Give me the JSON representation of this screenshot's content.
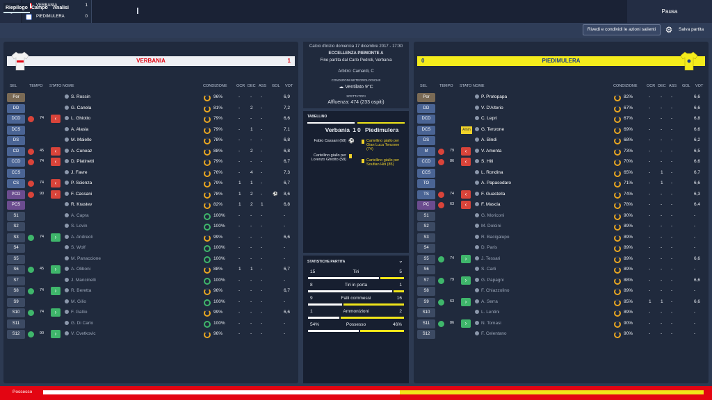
{
  "topbar": {
    "home_team": "VERBANIA",
    "home_score": "1",
    "away_team": "PIEDIMULERA",
    "away_score": "0",
    "pause_label": "Pausa"
  },
  "tabs": [
    "Riepilogo",
    "Campo",
    "Analisi"
  ],
  "toolbar": {
    "share_label": "Rivedi e condividi le azioni salienti",
    "save_label": "Salva partita"
  },
  "home": {
    "name": "VERBANIA",
    "score": "1",
    "headers": [
      "SEL",
      "TEMPO",
      "STATO",
      "NOME",
      "CONDIZIONE",
      "OCR",
      "DEC",
      "ASS",
      "GOL",
      "VOT"
    ],
    "players": [
      {
        "pos": "Por",
        "time": "",
        "status": "",
        "name": "S. Rossin",
        "cond": "96%",
        "ocr": "-",
        "dec": "-",
        "ass": "-",
        "gol": "",
        "vot": "6,9"
      },
      {
        "pos": "DD",
        "time": "",
        "status": "",
        "name": "G. Canela",
        "cond": "81%",
        "ocr": "-",
        "dec": "2",
        "ass": "-",
        "gol": "",
        "vot": "7,2"
      },
      {
        "pos": "DCD",
        "time": "74",
        "status": "out",
        "name": "L. Ghiotto",
        "cond": "79%",
        "ocr": "-",
        "dec": "-",
        "ass": "-",
        "gol": "",
        "vot": "6,6"
      },
      {
        "pos": "DCS",
        "time": "",
        "status": "",
        "name": "A. Alasia",
        "cond": "79%",
        "ocr": "-",
        "dec": "1",
        "ass": "-",
        "gol": "",
        "vot": "7,1"
      },
      {
        "pos": "DS",
        "time": "",
        "status": "",
        "name": "M. Maiello",
        "cond": "78%",
        "ocr": "-",
        "dec": "-",
        "ass": "-",
        "gol": "",
        "vot": "6,8"
      },
      {
        "pos": "CD",
        "time": "45",
        "status": "out",
        "name": "A. Cuneaz",
        "cond": "88%",
        "ocr": "-",
        "dec": "2",
        "ass": "-",
        "gol": "",
        "vot": "6,8"
      },
      {
        "pos": "CCD",
        "time": "74",
        "status": "out",
        "name": "D. Platinetti",
        "cond": "79%",
        "ocr": "-",
        "dec": "-",
        "ass": "-",
        "gol": "",
        "vot": "6,7"
      },
      {
        "pos": "CCS",
        "time": "",
        "status": "",
        "name": "J. Favre",
        "cond": "76%",
        "ocr": "-",
        "dec": "4",
        "ass": "-",
        "gol": "",
        "vot": "7,3"
      },
      {
        "pos": "CS",
        "time": "74",
        "status": "out",
        "name": "P. Scienza",
        "cond": "79%",
        "ocr": "1",
        "dec": "1",
        "ass": "-",
        "gol": "",
        "vot": "6,7"
      },
      {
        "pos": "PCD",
        "time": "90",
        "status": "out",
        "name": "F. Cassani",
        "cond": "78%",
        "ocr": "1",
        "dec": "2",
        "ass": "-",
        "gol": "ball",
        "vot": "8,6"
      },
      {
        "pos": "PCS",
        "time": "",
        "status": "",
        "name": "R. Krastev",
        "cond": "82%",
        "ocr": "1",
        "dec": "2",
        "ass": "1",
        "gol": "",
        "vot": "6,8"
      },
      {
        "pos": "S1",
        "time": "",
        "status": "",
        "name": "A. Capra",
        "cond": "100%",
        "ocr": "-",
        "dec": "-",
        "ass": "-",
        "gol": "",
        "vot": "-"
      },
      {
        "pos": "S2",
        "time": "",
        "status": "",
        "name": "S. Lovin",
        "cond": "100%",
        "ocr": "-",
        "dec": "-",
        "ass": "-",
        "gol": "",
        "vot": "-"
      },
      {
        "pos": "S3",
        "time": "74",
        "status": "in",
        "name": "A. Andreoli",
        "cond": "99%",
        "ocr": "-",
        "dec": "-",
        "ass": "-",
        "gol": "",
        "vot": "6,6"
      },
      {
        "pos": "S4",
        "time": "",
        "status": "",
        "name": "S. Wolf",
        "cond": "100%",
        "ocr": "-",
        "dec": "-",
        "ass": "-",
        "gol": "",
        "vot": "-"
      },
      {
        "pos": "S5",
        "time": "",
        "status": "",
        "name": "M. Panaccione",
        "cond": "100%",
        "ocr": "-",
        "dec": "-",
        "ass": "-",
        "gol": "",
        "vot": "-"
      },
      {
        "pos": "S6",
        "time": "45",
        "status": "in",
        "name": "A. Oliboni",
        "cond": "88%",
        "ocr": "1",
        "dec": "1",
        "ass": "-",
        "gol": "",
        "vot": "6,7"
      },
      {
        "pos": "S7",
        "time": "",
        "status": "",
        "name": "J. Mancinelli",
        "cond": "100%",
        "ocr": "-",
        "dec": "-",
        "ass": "-",
        "gol": "",
        "vot": "-"
      },
      {
        "pos": "S8",
        "time": "74",
        "status": "in",
        "name": "R. Beretta",
        "cond": "96%",
        "ocr": "-",
        "dec": "-",
        "ass": "-",
        "gol": "",
        "vot": "6,7"
      },
      {
        "pos": "S9",
        "time": "",
        "status": "",
        "name": "M. Gilio",
        "cond": "100%",
        "ocr": "-",
        "dec": "-",
        "ass": "-",
        "gol": "",
        "vot": "-"
      },
      {
        "pos": "S10",
        "time": "74",
        "status": "in",
        "name": "F. Gallio",
        "cond": "99%",
        "ocr": "-",
        "dec": "-",
        "ass": "-",
        "gol": "",
        "vot": "6,6"
      },
      {
        "pos": "S11",
        "time": "",
        "status": "",
        "name": "G. Di Carlo",
        "cond": "100%",
        "ocr": "-",
        "dec": "-",
        "ass": "-",
        "gol": "",
        "vot": "-"
      },
      {
        "pos": "S12",
        "time": "90",
        "status": "in",
        "name": "V. Cvetkovic",
        "cond": "96%",
        "ocr": "-",
        "dec": "-",
        "ass": "-",
        "gol": "",
        "vot": "-"
      }
    ]
  },
  "away": {
    "name": "PIEDIMULERA",
    "score": "0",
    "headers": [
      "SEL",
      "TEMPO",
      "STATO",
      "NOME",
      "CONDIZIONE",
      "OCR",
      "DEC",
      "ASS",
      "GOL",
      "VOT"
    ],
    "players": [
      {
        "pos": "Por",
        "time": "",
        "status": "",
        "name": "P. Protopapa",
        "cond": "82%",
        "ocr": "-",
        "dec": "-",
        "ass": "-",
        "gol": "",
        "vot": "6,6"
      },
      {
        "pos": "DD",
        "time": "",
        "status": "",
        "name": "V. D'Alterio",
        "cond": "67%",
        "ocr": "-",
        "dec": "-",
        "ass": "-",
        "gol": "",
        "vot": "6,6"
      },
      {
        "pos": "DCD",
        "time": "",
        "status": "",
        "name": "C. Lepri",
        "cond": "67%",
        "ocr": "-",
        "dec": "-",
        "ass": "-",
        "gol": "",
        "vot": "6,8"
      },
      {
        "pos": "DCS",
        "time": "",
        "status": "amm",
        "name": "G. Tenzone",
        "cond": "69%",
        "ocr": "-",
        "dec": "-",
        "ass": "-",
        "gol": "",
        "vot": "6,6"
      },
      {
        "pos": "DS",
        "time": "",
        "status": "",
        "name": "A. Bindi",
        "cond": "68%",
        "ocr": "-",
        "dec": "-",
        "ass": "-",
        "gol": "",
        "vot": "6,2"
      },
      {
        "pos": "M",
        "time": "79",
        "status": "out",
        "name": "V. Amenta",
        "cond": "73%",
        "ocr": "-",
        "dec": "-",
        "ass": "-",
        "gol": "",
        "vot": "6,5"
      },
      {
        "pos": "CCD",
        "time": "86",
        "status": "out",
        "name": "S. Hiti",
        "cond": "70%",
        "ocr": "-",
        "dec": "-",
        "ass": "-",
        "gol": "",
        "vot": "6,6"
      },
      {
        "pos": "CCS",
        "time": "",
        "status": "",
        "name": "L. Rondina",
        "cond": "65%",
        "ocr": "-",
        "dec": "1",
        "ass": "-",
        "gol": "",
        "vot": "6,7"
      },
      {
        "pos": "TO",
        "time": "",
        "status": "",
        "name": "A. Papasodaro",
        "cond": "71%",
        "ocr": "-",
        "dec": "1",
        "ass": "-",
        "gol": "",
        "vot": "6,6"
      },
      {
        "pos": "TS",
        "time": "74",
        "status": "out",
        "name": "F. Guastella",
        "cond": "74%",
        "ocr": "-",
        "dec": "-",
        "ass": "-",
        "gol": "",
        "vot": "6,3"
      },
      {
        "pos": "PC",
        "time": "63",
        "status": "out",
        "name": "F. Mascia",
        "cond": "78%",
        "ocr": "-",
        "dec": "-",
        "ass": "-",
        "gol": "",
        "vot": "6,4"
      },
      {
        "pos": "S1",
        "time": "",
        "status": "",
        "name": "G. Moriconi",
        "cond": "90%",
        "ocr": "-",
        "dec": "-",
        "ass": "-",
        "gol": "",
        "vot": "-"
      },
      {
        "pos": "S2",
        "time": "",
        "status": "",
        "name": "M. Dolcini",
        "cond": "89%",
        "ocr": "-",
        "dec": "-",
        "ass": "-",
        "gol": "",
        "vot": "-"
      },
      {
        "pos": "S3",
        "time": "",
        "status": "",
        "name": "R. Bacigalupo",
        "cond": "89%",
        "ocr": "-",
        "dec": "-",
        "ass": "-",
        "gol": "",
        "vot": "-"
      },
      {
        "pos": "S4",
        "time": "",
        "status": "",
        "name": "D. Paris",
        "cond": "89%",
        "ocr": "-",
        "dec": "-",
        "ass": "-",
        "gol": "",
        "vot": "-"
      },
      {
        "pos": "S5",
        "time": "74",
        "status": "in",
        "name": "J. Tessari",
        "cond": "89%",
        "ocr": "-",
        "dec": "-",
        "ass": "-",
        "gol": "",
        "vot": "6,6"
      },
      {
        "pos": "S6",
        "time": "",
        "status": "",
        "name": "S. Carli",
        "cond": "89%",
        "ocr": "-",
        "dec": "-",
        "ass": "-",
        "gol": "",
        "vot": "-"
      },
      {
        "pos": "S7",
        "time": "79",
        "status": "in",
        "name": "G. Papagni",
        "cond": "88%",
        "ocr": "-",
        "dec": "-",
        "ass": "-",
        "gol": "",
        "vot": "6,6"
      },
      {
        "pos": "S8",
        "time": "",
        "status": "",
        "name": "F. Chiazzolino",
        "cond": "89%",
        "ocr": "-",
        "dec": "-",
        "ass": "-",
        "gol": "",
        "vot": "-"
      },
      {
        "pos": "S9",
        "time": "63",
        "status": "in",
        "name": "A. Serra",
        "cond": "85%",
        "ocr": "1",
        "dec": "1",
        "ass": "-",
        "gol": "",
        "vot": "6,6"
      },
      {
        "pos": "S10",
        "time": "",
        "status": "",
        "name": "L. Lentini",
        "cond": "89%",
        "ocr": "-",
        "dec": "-",
        "ass": "-",
        "gol": "",
        "vot": "-"
      },
      {
        "pos": "S11",
        "time": "86",
        "status": "in",
        "name": "N. Tomasi",
        "cond": "90%",
        "ocr": "-",
        "dec": "-",
        "ass": "-",
        "gol": "",
        "vot": "-"
      },
      {
        "pos": "S12",
        "time": "",
        "status": "",
        "name": "F. Celentano",
        "cond": "90%",
        "ocr": "-",
        "dec": "-",
        "ass": "-",
        "gol": "",
        "vot": "-"
      }
    ]
  },
  "match_info": {
    "kickoff": "Calcio d'inizio domenica 17 dicembre 2017 - 17:30",
    "competition": "ECCELLENZA PIEMONTE A",
    "result_line": "Fine partita dal Carlo Pedroli, Verbania",
    "referee": "Arbitro: Camardi, C",
    "weather_label": "CONDIZIONI METEOROLOGICHE",
    "weather": "Ventilato 9°C",
    "spectators_label": "SPETTATORI",
    "attendance": "Affluenza: 474 (233 ospiti)"
  },
  "scoreboard": {
    "title": "TABELLINO",
    "home_name": "Verbania",
    "home_score": "1",
    "away_name": "Piedimulera",
    "away_score": "0",
    "home_events": [
      "Fabio Cassani (68)",
      "Cartellino giallo per Lorenzo Ghiotto (58)"
    ],
    "away_events": [
      "Cartellino giallo per Gian Luca Tenzone (74)",
      "Cartellino giallo per Soufian Hiti (85)"
    ]
  },
  "stats": {
    "title": "STATISTICHE PARTITA",
    "rows": [
      {
        "label": "Tiri",
        "home": "15",
        "away": "5"
      },
      {
        "label": "Tiri in porta",
        "home": "8",
        "away": "1"
      },
      {
        "label": "Falli commessi",
        "home": "9",
        "away": "16"
      },
      {
        "label": "Ammonizioni",
        "home": "1",
        "away": "2"
      },
      {
        "label": "Possesso",
        "home": "54%",
        "away": "46%"
      }
    ]
  },
  "possession_bar": {
    "label": "Possesso",
    "home": 0.54,
    "away": 0.46
  },
  "colors": {
    "home": "#e30512",
    "away": "#f0e51a",
    "accent": "#e9a722",
    "sub_in": "#3fb66b",
    "sub_out": "#d9443a"
  }
}
